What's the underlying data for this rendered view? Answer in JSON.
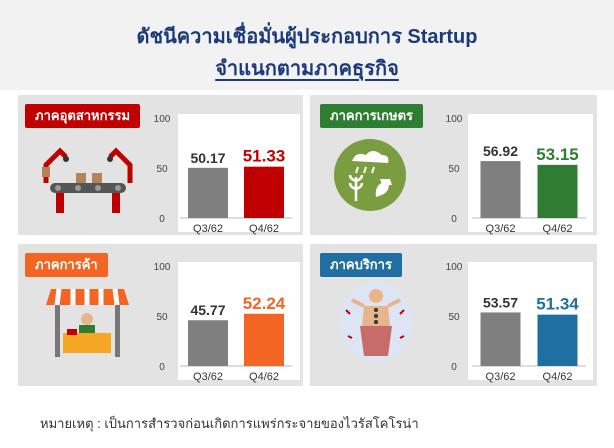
{
  "header": {
    "title_line1": "ดัชนีความเชื่อมั่นผู้ประกอบการ Startup",
    "title_line2": "จำแนกตามภาคธุรกิจ"
  },
  "footnote": "หมายเหตุ : เป็นการสำรวจก่อนเกิดการแพร่กระจายของไวรัสโคโรน่า",
  "colors": {
    "prev_bar": "#7f7f7f",
    "industry": "#c00000",
    "agriculture": "#2e7d32",
    "trade": "#f26522",
    "service": "#1f6fa3"
  },
  "sectors": [
    {
      "label": "ภาคอุตสาหกรรม",
      "icon": "factory-robot-icon"
    },
    {
      "label": "ภาคการเกษตร",
      "icon": "agriculture-icon"
    },
    {
      "label": "ภาคการค้า",
      "icon": "shop-icon"
    },
    {
      "label": "ภาคบริการ",
      "icon": "spa-service-icon"
    }
  ],
  "chart_data": [
    {
      "type": "bar",
      "title": "ภาคอุตสาหกรรม",
      "categories": [
        "Q3/62",
        "Q4/62"
      ],
      "values": [
        50.17,
        51.33
      ],
      "value_labels": [
        "50.17",
        "51.33"
      ],
      "yticks": [
        "0",
        "50",
        "100"
      ],
      "ylim": [
        0,
        100
      ]
    },
    {
      "type": "bar",
      "title": "ภาคการเกษตร",
      "categories": [
        "Q3/62",
        "Q4/62"
      ],
      "values": [
        56.92,
        53.15
      ],
      "value_labels": [
        "56.92",
        "53.15"
      ],
      "yticks": [
        "0",
        "50",
        "100"
      ],
      "ylim": [
        0,
        100
      ]
    },
    {
      "type": "bar",
      "title": "ภาคการค้า",
      "categories": [
        "Q3/62",
        "Q4/62"
      ],
      "values": [
        45.77,
        52.24
      ],
      "value_labels": [
        "45.77",
        "52.24"
      ],
      "yticks": [
        "0",
        "50",
        "100"
      ],
      "ylim": [
        0,
        100
      ]
    },
    {
      "type": "bar",
      "title": "ภาคบริการ",
      "categories": [
        "Q3/62",
        "Q4/62"
      ],
      "values": [
        53.57,
        51.34
      ],
      "value_labels": [
        "53.57",
        "51.34"
      ],
      "yticks": [
        "0",
        "50",
        "100"
      ],
      "ylim": [
        0,
        100
      ]
    }
  ]
}
